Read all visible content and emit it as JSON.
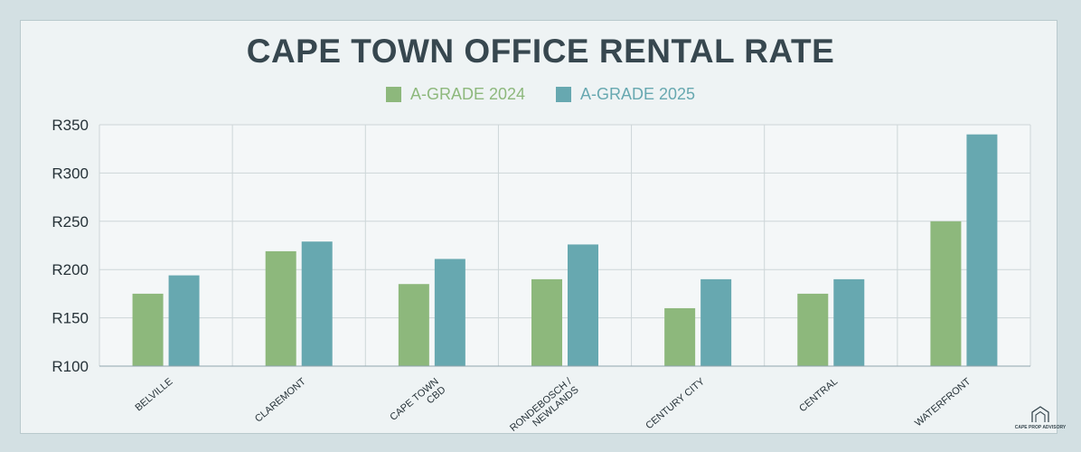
{
  "chart_data": {
    "type": "bar",
    "title": "CAPE TOWN OFFICE RENTAL RATE",
    "categories": [
      "BELVILLE",
      "CLAREMONT",
      "CAPE TOWN CBD",
      "RONDEBOSCH / NEWLANDS",
      "CENTURY CITY",
      "CENTRAL",
      "WATERFRONT"
    ],
    "category_lines": [
      [
        "BELVILLE"
      ],
      [
        "CLAREMONT"
      ],
      [
        "CAPE TOWN",
        "CBD"
      ],
      [
        "RONDEBOSCH /",
        "NEWLANDS"
      ],
      [
        "CENTURY CITY"
      ],
      [
        "CENTRAL"
      ],
      [
        "WATERFRONT"
      ]
    ],
    "series": [
      {
        "name": "A-GRADE 2024",
        "color": "#8db87c",
        "values": [
          175,
          219,
          185,
          190,
          160,
          175,
          250
        ]
      },
      {
        "name": "A-GRADE 2025",
        "color": "#67a8b0",
        "values": [
          194,
          229,
          211,
          226,
          190,
          190,
          340
        ]
      }
    ],
    "ylim": [
      100,
      350
    ],
    "yticks": [
      100,
      150,
      200,
      250,
      300,
      350
    ],
    "ytick_labels": [
      "R100",
      "R150",
      "R200",
      "R250",
      "R300",
      "R350"
    ],
    "xlabel": "",
    "ylabel": "",
    "grid": true,
    "legend_position": "top-center"
  },
  "branding": {
    "logo_text": "CAPE PROP ADVISORY"
  }
}
